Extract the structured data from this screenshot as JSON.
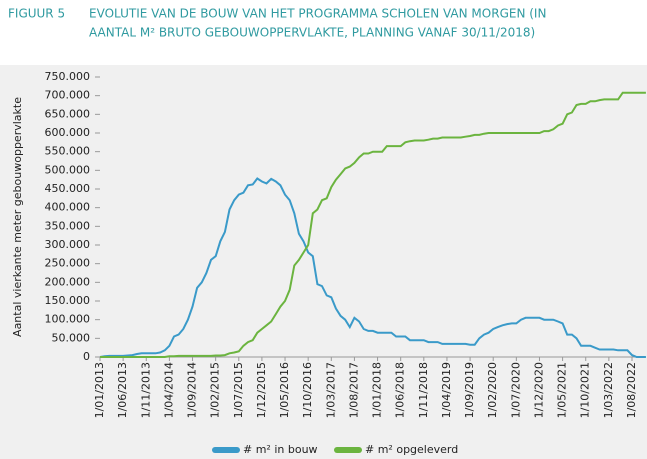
{
  "chart_data": {
    "type": "line",
    "figure_label": "FIGUUR 5",
    "title": [
      "EVOLUTIE VAN DE BOUW VAN HET PROGRAMMA SCHOLEN VAN MORGEN (IN",
      "AANTAL M² BRUTO GEBOUWOPPERVLAKTE, PLANNING VANAF 30/11/2018)"
    ],
    "y_label": "Aantal vierkante meter gebouwoppervlakte",
    "categories": [
      "1/01/2013",
      null,
      null,
      null,
      null,
      "1/06/2013",
      null,
      null,
      null,
      null,
      "1/11/2013",
      null,
      null,
      null,
      null,
      "1/04/2014",
      null,
      null,
      null,
      null,
      "1/09/2014",
      null,
      null,
      null,
      null,
      "1/02/2015",
      null,
      null,
      null,
      null,
      "1/07/2015",
      null,
      null,
      null,
      null,
      "1/12/2015",
      null,
      null,
      null,
      null,
      "1/05/2016",
      null,
      null,
      null,
      null,
      "1/10/2016",
      null,
      null,
      null,
      null,
      "1/03/2017",
      null,
      null,
      null,
      null,
      "1/08/2017",
      null,
      null,
      null,
      null,
      "1/01/2018",
      null,
      null,
      null,
      null,
      "1/06/2018",
      null,
      null,
      null,
      null,
      "1/11/2018",
      null,
      null,
      null,
      null,
      "1/04/2019",
      null,
      null,
      null,
      null,
      "1/09/2019",
      null,
      null,
      null,
      null,
      "1/02/2020",
      null,
      null,
      null,
      null,
      "1/07/2020",
      null,
      null,
      null,
      null,
      "1/12/2020",
      null,
      null,
      null,
      null,
      "1/05/2021",
      null,
      null,
      null,
      null,
      "1/10/2021",
      null,
      null,
      null,
      null,
      "1/03/2022",
      null,
      null,
      null,
      null,
      "1/08/2022",
      null,
      null,
      null
    ],
    "series": [
      {
        "name": "# m² in bouw",
        "color": "#3a9ac9",
        "values": [
          0,
          2000,
          3000,
          3000,
          3000,
          3000,
          4000,
          5000,
          8000,
          10000,
          10000,
          10000,
          10000,
          12000,
          18000,
          30000,
          55000,
          60000,
          75000,
          100000,
          135000,
          185000,
          200000,
          225000,
          260000,
          270000,
          310000,
          335000,
          395000,
          420000,
          435000,
          440000,
          460000,
          462000,
          478000,
          470000,
          465000,
          477000,
          470000,
          460000,
          435000,
          420000,
          385000,
          330000,
          310000,
          280000,
          270000,
          195000,
          190000,
          165000,
          160000,
          130000,
          110000,
          100000,
          80000,
          105000,
          95000,
          75000,
          70000,
          70000,
          65000,
          65000,
          65000,
          65000,
          55000,
          55000,
          55000,
          45000,
          45000,
          45000,
          45000,
          40000,
          40000,
          40000,
          35000,
          35000,
          35000,
          35000,
          35000,
          35000,
          33000,
          33000,
          50000,
          60000,
          65000,
          75000,
          80000,
          85000,
          88000,
          90000,
          90000,
          100000,
          105000,
          105000,
          105000,
          105000,
          100000,
          100000,
          100000,
          95000,
          90000,
          60000,
          60000,
          50000,
          30000,
          30000,
          30000,
          25000,
          20000,
          20000,
          20000,
          20000,
          18000,
          18000,
          18000,
          5000,
          0,
          0,
          0
        ]
      },
      {
        "name": "# m² opgeleverd",
        "color": "#6bb43f",
        "values": [
          0,
          0,
          0,
          0,
          0,
          0,
          0,
          0,
          0,
          0,
          0,
          0,
          0,
          0,
          0,
          2000,
          2000,
          3000,
          3000,
          3000,
          3000,
          3000,
          3000,
          3000,
          3000,
          4000,
          4000,
          5000,
          10000,
          12000,
          15000,
          30000,
          40000,
          45000,
          65000,
          75000,
          85000,
          95000,
          115000,
          135000,
          150000,
          180000,
          245000,
          260000,
          280000,
          300000,
          385000,
          395000,
          420000,
          425000,
          455000,
          475000,
          490000,
          505000,
          510000,
          520000,
          535000,
          545000,
          545000,
          550000,
          550000,
          550000,
          565000,
          565000,
          565000,
          565000,
          575000,
          578000,
          580000,
          580000,
          580000,
          582000,
          585000,
          585000,
          588000,
          588000,
          588000,
          588000,
          588000,
          590000,
          592000,
          595000,
          595000,
          598000,
          600000,
          600000,
          600000,
          600000,
          600000,
          600000,
          600000,
          600000,
          600000,
          600000,
          600000,
          600000,
          605000,
          605000,
          610000,
          620000,
          625000,
          650000,
          655000,
          675000,
          678000,
          678000,
          685000,
          685000,
          688000,
          690000,
          690000,
          690000,
          690000,
          708000,
          708000,
          708000,
          708000,
          708000,
          708000
        ]
      }
    ],
    "ylim": [
      0,
      750000
    ],
    "yticks": [
      0,
      {
        "value": 50000,
        "label": "50.000"
      },
      {
        "value": 100000,
        "label": "100.000"
      },
      {
        "value": 150000,
        "label": "150.000"
      },
      {
        "value": 200000,
        "label": "200.000"
      },
      {
        "value": 250000,
        "label": "250.000"
      },
      {
        "value": 300000,
        "label": "300.000"
      },
      {
        "value": 350000,
        "label": "350.000"
      },
      {
        "value": 400000,
        "label": "400.000"
      },
      {
        "value": 450000,
        "label": "450.000"
      },
      {
        "value": 500000,
        "label": "500.000"
      },
      {
        "value": 550000,
        "label": "550.000"
      },
      {
        "value": 600000,
        "label": "600.000"
      },
      {
        "value": 650000,
        "label": "650.000"
      },
      {
        "value": 700000,
        "label": "700.000"
      },
      {
        "value": 750000,
        "label": "750.000"
      }
    ],
    "grid": false,
    "legend": "bottom"
  }
}
